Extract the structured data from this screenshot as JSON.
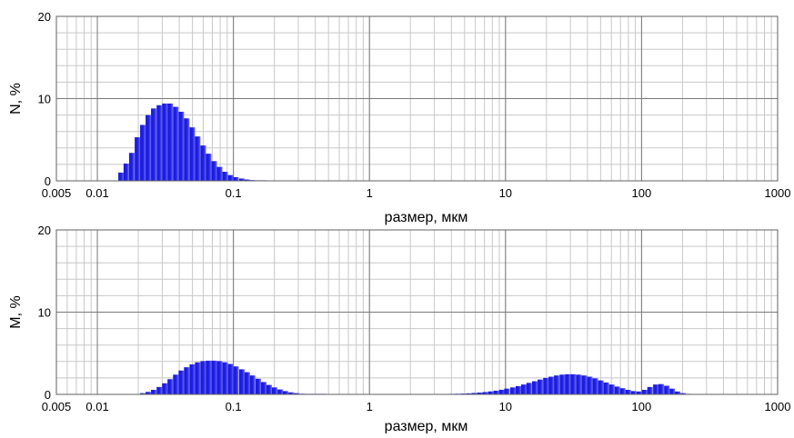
{
  "chart_data": [
    {
      "type": "bar",
      "xscale": "log",
      "xlabel": "размер, мкм",
      "ylabel": "N, %",
      "xlim": [
        0.005,
        1000
      ],
      "ylim": [
        0,
        20
      ],
      "xtick_labels": [
        "0.005",
        "0.01",
        "0.1",
        "1",
        "10",
        "100",
        "1000"
      ],
      "xtick_values": [
        0.005,
        0.01,
        0.1,
        1,
        10,
        100,
        1000
      ],
      "ytick_labels": [
        "0",
        "10",
        "20"
      ],
      "ytick_values": [
        0,
        10,
        20
      ],
      "grid": true,
      "bar_color": "#2020e8",
      "x": [
        0.015,
        0.0164,
        0.018,
        0.0198,
        0.0217,
        0.0238,
        0.0261,
        0.0287,
        0.0315,
        0.0345,
        0.0379,
        0.0416,
        0.0456,
        0.0501,
        0.0549,
        0.0603,
        0.0661,
        0.0726,
        0.0796,
        0.0874,
        0.0959,
        0.105,
        0.116,
        0.127,
        0.139,
        0.153,
        0.168
      ],
      "values": [
        1.0,
        2.1,
        3.4,
        5.3,
        6.8,
        8.0,
        8.8,
        9.2,
        9.4,
        9.4,
        9.0,
        8.4,
        7.6,
        6.5,
        5.4,
        4.3,
        3.3,
        2.4,
        1.7,
        1.1,
        0.7,
        0.45,
        0.28,
        0.16,
        0.09,
        0.05,
        0.02
      ]
    },
    {
      "type": "bar",
      "xscale": "log",
      "xlabel": "размер, мкм",
      "ylabel": "M, %",
      "xlim": [
        0.005,
        1000
      ],
      "ylim": [
        0,
        20
      ],
      "xtick_labels": [
        "0.005",
        "0.01",
        "0.1",
        "1",
        "10",
        "100",
        "1000"
      ],
      "xtick_values": [
        0.005,
        0.01,
        0.1,
        1,
        10,
        100,
        1000
      ],
      "ytick_labels": [
        "0",
        "10",
        "20"
      ],
      "ytick_values": [
        0,
        10,
        20
      ],
      "grid": true,
      "bar_color": "#2020e8",
      "x": [
        0.0217,
        0.0238,
        0.0261,
        0.0287,
        0.0315,
        0.0345,
        0.0379,
        0.0416,
        0.0456,
        0.0501,
        0.0549,
        0.0603,
        0.0661,
        0.0726,
        0.0796,
        0.0874,
        0.0959,
        0.105,
        0.116,
        0.127,
        0.139,
        0.153,
        0.168,
        0.184,
        0.202,
        0.222,
        0.243,
        0.267,
        0.293,
        0.322,
        0.353,
        0.387,
        0.425,
        0.466,
        4.08,
        4.48,
        4.92,
        5.4,
        5.92,
        6.5,
        7.13,
        7.83,
        8.59,
        9.43,
        10.3,
        11.4,
        12.5,
        13.7,
        15.0,
        16.5,
        18.1,
        19.9,
        21.8,
        23.9,
        26.3,
        28.8,
        31.6,
        34.7,
        38.1,
        41.8,
        45.9,
        50.4,
        55.3,
        60.7,
        66.6,
        73.1,
        80.2,
        88.0,
        96.6,
        106,
        116,
        128,
        140,
        154,
        169,
        185,
        203,
        223
      ],
      "values": [
        0.15,
        0.3,
        0.55,
        0.9,
        1.35,
        1.85,
        2.4,
        2.9,
        3.3,
        3.65,
        3.9,
        4.05,
        4.1,
        4.1,
        4.05,
        3.9,
        3.7,
        3.4,
        3.05,
        2.7,
        2.3,
        1.9,
        1.5,
        1.15,
        0.85,
        0.6,
        0.4,
        0.25,
        0.15,
        0.08,
        0.04,
        0.02,
        0.01,
        0.005,
        0.05,
        0.08,
        0.1,
        0.13,
        0.17,
        0.22,
        0.28,
        0.36,
        0.45,
        0.56,
        0.7,
        0.85,
        1.0,
        1.2,
        1.4,
        1.6,
        1.8,
        2.0,
        2.15,
        2.3,
        2.4,
        2.45,
        2.45,
        2.4,
        2.3,
        2.15,
        1.95,
        1.7,
        1.45,
        1.2,
        0.95,
        0.75,
        0.55,
        0.4,
        0.35,
        0.55,
        0.9,
        1.2,
        1.25,
        1.05,
        0.7,
        0.35,
        0.15,
        0.05
      ]
    }
  ]
}
